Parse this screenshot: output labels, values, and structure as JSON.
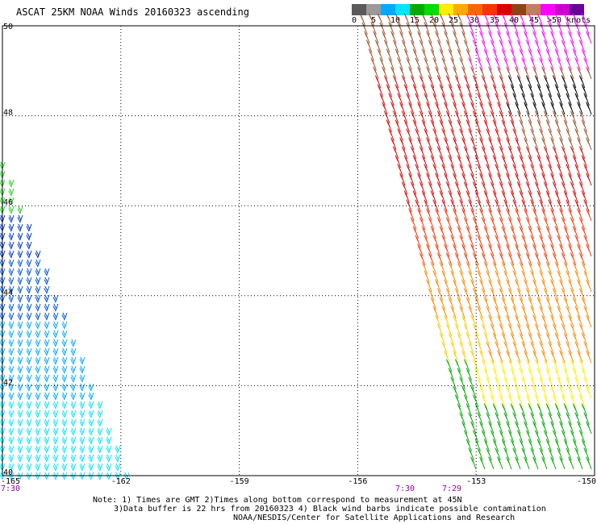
{
  "title": "ASCAT 25KM NOAA Winds 20160323 ascending",
  "colorbar": {
    "colors": [
      "#5a5a5a",
      "#9a9a9a",
      "#00aaff",
      "#00e5ff",
      "#00aa00",
      "#00dd00",
      "#ffee00",
      "#ffaa00",
      "#ff6600",
      "#ff3300",
      "#dd0000",
      "#8b4513",
      "#c08060",
      "#ff00ff",
      "#cc00cc",
      "#660099"
    ],
    "labels": [
      "0",
      "5",
      "10",
      "15",
      "20",
      "25",
      "30",
      "35",
      "40",
      "45",
      ">50 knots"
    ]
  },
  "map": {
    "lon_range": [
      -165,
      -150
    ],
    "lat_range": [
      40,
      50
    ],
    "lon_ticks": [
      "-165",
      "-162",
      "-159",
      "-156",
      "-153",
      "-150"
    ],
    "lat_ticks": [
      "40",
      "42",
      "44",
      "46",
      "48",
      "50"
    ],
    "time_labels": [
      {
        "text": "7:30",
        "color": "#9900aa"
      },
      {
        "text": "7:30",
        "color": "#9900aa"
      },
      {
        "text": "7:29",
        "color": "#9900aa"
      }
    ],
    "wind_bands": [
      {
        "name": "west-swath",
        "colors": [
          "#22cc22",
          "#0033cc",
          "#0055dd",
          "#00aaff",
          "#00e5ff"
        ]
      },
      {
        "name": "east-swath",
        "colors": [
          "#a0522d",
          "#ff00ff",
          "#000000",
          "#dd0000",
          "#ff3300",
          "#ff8800",
          "#ffcc00",
          "#ffee00",
          "#00aa00"
        ]
      }
    ]
  },
  "notes": {
    "line1": "Note: 1) Times are GMT 2)Times along bottom correspond to measurement at 45N",
    "line2": "3)Data buffer is 22 hrs from 20160323 4) Black wind barbs indicate possible contamination",
    "line3": "NOAA/NESDIS/Center for Satellite Applications and Research"
  }
}
